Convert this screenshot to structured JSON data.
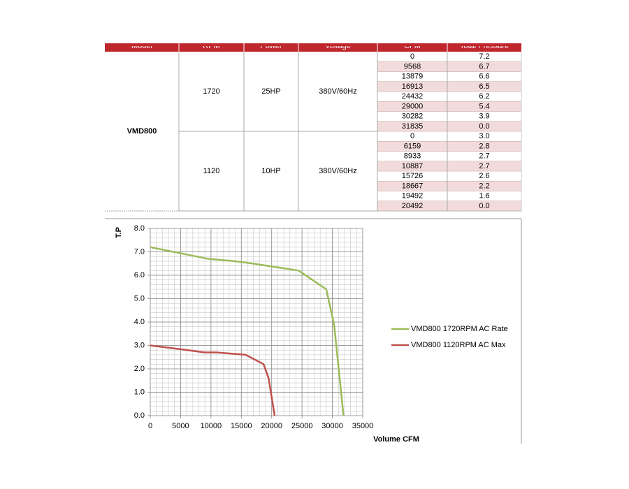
{
  "table": {
    "header": [
      "Model",
      "RPM",
      "Power",
      "Voltage",
      "CFM",
      "Total Pressure"
    ],
    "model": "VMD800",
    "groups": [
      {
        "rpm": "1720",
        "power": "25HP",
        "voltage": "380V/60Hz",
        "rows": [
          [
            "0",
            "7.2"
          ],
          [
            "9568",
            "6.7"
          ],
          [
            "13879",
            "6.6"
          ],
          [
            "16913",
            "6.5"
          ],
          [
            "24432",
            "6.2"
          ],
          [
            "29000",
            "5.4"
          ],
          [
            "30282",
            "3.9"
          ],
          [
            "31835",
            "0.0"
          ]
        ]
      },
      {
        "rpm": "1120",
        "power": "10HP",
        "voltage": "380V/60Hz",
        "rows": [
          [
            "0",
            "3.0"
          ],
          [
            "6159",
            "2.8"
          ],
          [
            "8933",
            "2.7"
          ],
          [
            "10887",
            "2.7"
          ],
          [
            "15726",
            "2.6"
          ],
          [
            "18667",
            "2.2"
          ],
          [
            "19492",
            "1.6"
          ],
          [
            "20492",
            "0.0"
          ]
        ]
      }
    ]
  },
  "chart_data": {
    "type": "line",
    "xlabel": "Volume CFM",
    "ylabel": "T.P",
    "grid": true,
    "legend": "right",
    "xlim": [
      0,
      35000
    ],
    "xticks": [
      0,
      5000,
      10000,
      15000,
      20000,
      25000,
      30000,
      35000
    ],
    "ylim": [
      0,
      8
    ],
    "yticks": [
      {
        "value": 0,
        "label": "0.0"
      },
      {
        "value": 1,
        "label": "1.0"
      },
      {
        "value": 2,
        "label": "2.0"
      },
      {
        "value": 3,
        "label": "3.0"
      },
      {
        "value": 4,
        "label": "4.0"
      },
      {
        "value": 5,
        "label": "5.0"
      },
      {
        "value": 6,
        "label": "6.0"
      },
      {
        "value": 7,
        "label": "7.0"
      },
      {
        "value": 8,
        "label": "8.0"
      }
    ],
    "series": [
      {
        "name": "VMD800 1720RPM AC Rate",
        "color": "#9bbb59",
        "x": [
          0,
          9568,
          13879,
          16913,
          24432,
          29000,
          30282,
          31835
        ],
        "values": [
          7.2,
          6.7,
          6.6,
          6.5,
          6.2,
          5.4,
          3.9,
          0
        ]
      },
      {
        "name": "VMD800 1120RPM AC Max",
        "color": "#c0504d",
        "x": [
          0,
          6159,
          8933,
          10887,
          15726,
          18667,
          19492,
          20492
        ],
        "values": [
          3,
          2.8,
          2.7,
          2.7,
          2.6,
          2.2,
          1.6,
          0
        ]
      }
    ]
  }
}
